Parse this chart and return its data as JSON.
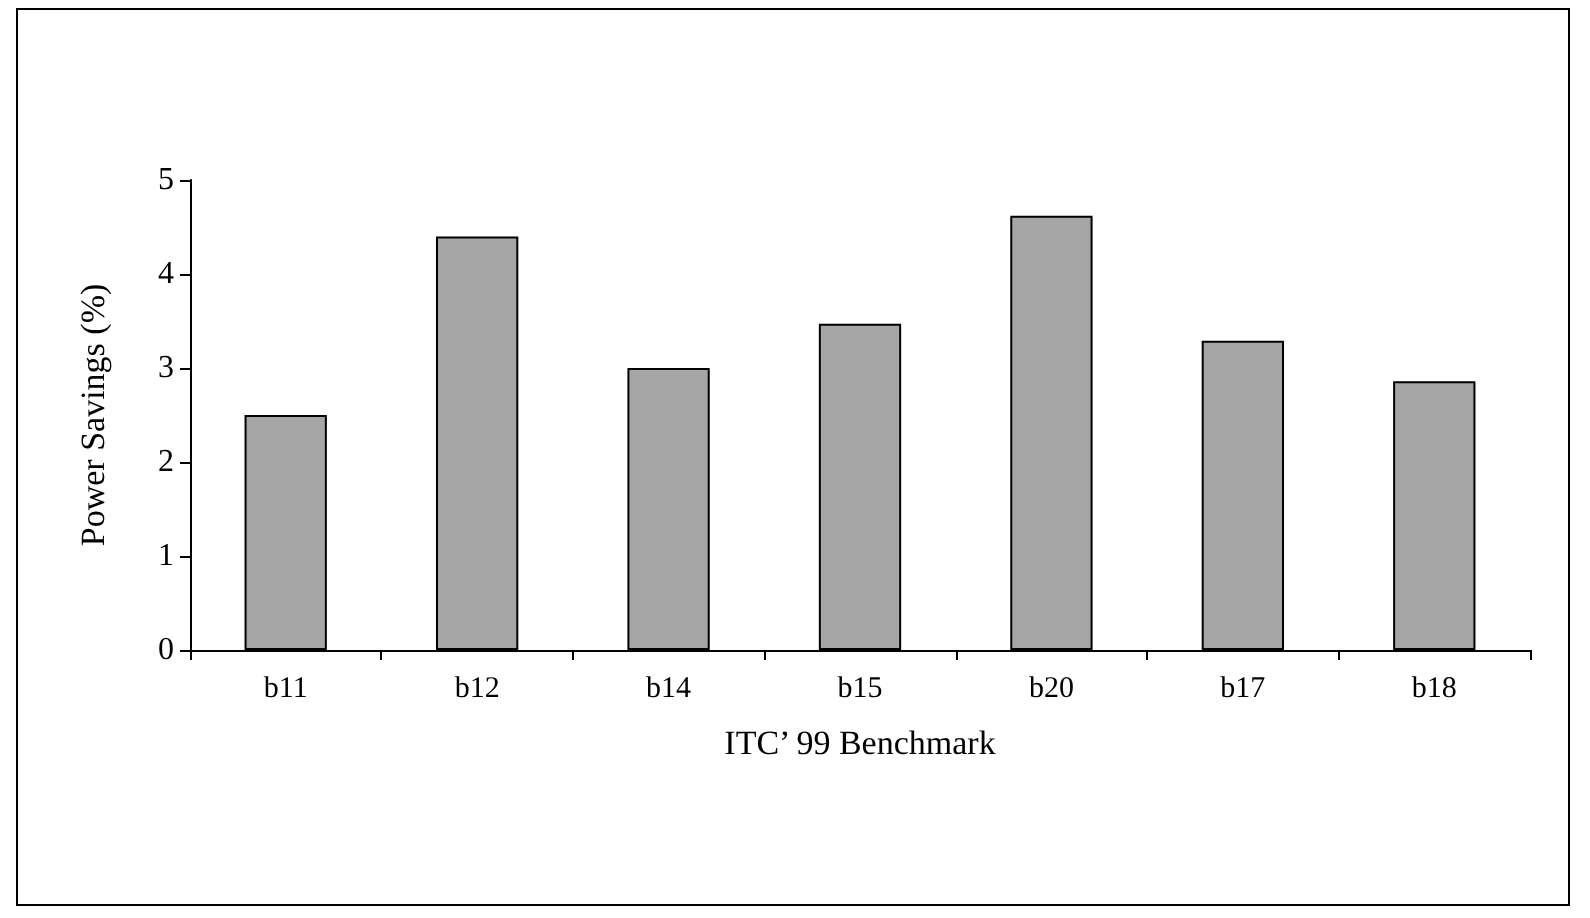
{
  "chart_data": {
    "type": "bar",
    "xlabel": "ITC’ 99 Benchmark",
    "ylabel": "Power Savings (%)",
    "categories": [
      "b11",
      "b12",
      "b14",
      "b15",
      "b20",
      "b17",
      "b18"
    ],
    "values": [
      2.5,
      4.4,
      3.0,
      3.47,
      4.62,
      3.29,
      2.86
    ],
    "color": "#a6a6a6",
    "ylim": [
      0,
      5
    ],
    "yticks": [
      0,
      1,
      2,
      3,
      4,
      5
    ],
    "grid": false
  }
}
